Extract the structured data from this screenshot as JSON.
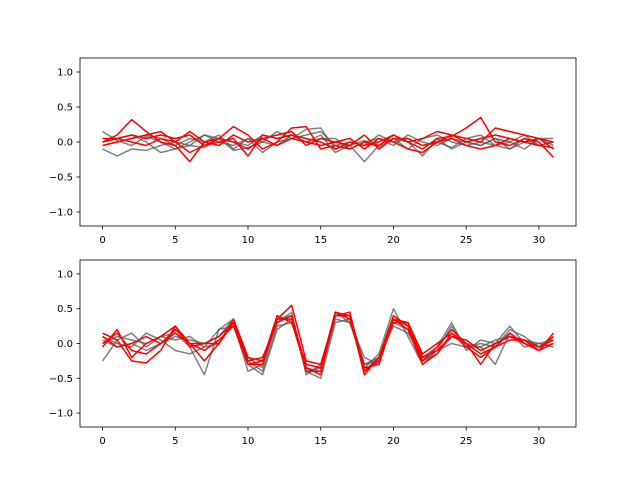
{
  "colors": {
    "gray_series": "#555555",
    "red_series": "#ff0000",
    "axes": "#000000",
    "background": "#ffffff"
  },
  "chart_data": [
    {
      "type": "line",
      "xlim": [
        -1.55,
        32.55
      ],
      "ylim": [
        -1.2,
        1.2
      ],
      "xticks": [
        0,
        5,
        10,
        15,
        20,
        25,
        30
      ],
      "yticks": [
        -1.0,
        -0.5,
        0.0,
        0.5,
        1.0
      ],
      "xtick_labels": [
        "0",
        "5",
        "10",
        "15",
        "20",
        "25",
        "30"
      ],
      "ytick_labels": [
        "−1.0",
        "−0.5",
        "0.0",
        "0.5",
        "1.0"
      ],
      "grid": false,
      "series": [
        {
          "color": "gray",
          "values": [
            0.15,
            0.02,
            -0.05,
            0.08,
            0.0,
            -0.1,
            -0.05,
            0.1,
            0.05,
            -0.12,
            -0.08,
            0.0,
            0.15,
            0.05,
            0.18,
            0.2,
            -0.1,
            -0.05,
            0.02,
            -0.08,
            0.05,
            0.0,
            -0.2,
            0.05,
            -0.1,
            0.0,
            -0.05,
            0.05,
            -0.1,
            0.0,
            0.05,
            -0.05
          ]
        },
        {
          "color": "gray",
          "values": [
            -0.1,
            -0.2,
            -0.1,
            -0.12,
            -0.05,
            0.0,
            -0.05,
            -0.08,
            0.05,
            0.0,
            -0.05,
            0.1,
            0.05,
            0.1,
            0.0,
            0.1,
            -0.15,
            -0.05,
            -0.28,
            -0.05,
            0.05,
            -0.1,
            0.05,
            0.1,
            0.0,
            -0.05,
            0.0,
            -0.05,
            0.0,
            -0.1,
            0.05,
            0.05
          ]
        },
        {
          "color": "gray",
          "values": [
            0.0,
            0.05,
            0.1,
            0.0,
            -0.15,
            -0.1,
            0.0,
            0.1,
            0.0,
            -0.05,
            0.05,
            -0.15,
            0.0,
            0.05,
            0.1,
            0.15,
            -0.05,
            0.0,
            -0.05,
            0.1,
            0.0,
            0.05,
            -0.05,
            0.0,
            -0.08,
            0.05,
            0.1,
            -0.05,
            -0.1,
            0.05,
            -0.05,
            0.0
          ]
        },
        {
          "color": "gray",
          "values": [
            -0.05,
            0.0,
            0.05,
            0.1,
            0.05,
            -0.05,
            0.05,
            0.0,
            0.1,
            -0.1,
            0.05,
            0.0,
            -0.05,
            0.1,
            0.0,
            0.05,
            0.05,
            -0.1,
            0.0,
            0.05,
            -0.05,
            0.1,
            0.0,
            -0.05,
            0.05,
            0.0,
            -0.05,
            0.05,
            0.0,
            0.1,
            -0.05,
            0.0
          ]
        },
        {
          "color": "red",
          "values": [
            0.0,
            0.1,
            0.32,
            0.15,
            0.0,
            -0.05,
            -0.28,
            0.0,
            0.05,
            0.22,
            0.1,
            -0.1,
            0.0,
            0.2,
            0.22,
            -0.1,
            -0.05,
            -0.1,
            0.0,
            -0.05,
            0.1,
            0.0,
            -0.1,
            0.05,
            0.08,
            0.2,
            0.35,
            0.0,
            -0.05,
            0.05,
            0.0,
            -0.22
          ]
        },
        {
          "color": "red",
          "values": [
            0.05,
            0.05,
            0.1,
            0.05,
            0.1,
            0.05,
            0.1,
            -0.05,
            0.0,
            0.05,
            -0.2,
            0.1,
            0.05,
            0.1,
            0.05,
            0.0,
            -0.1,
            0.0,
            -0.05,
            0.0,
            0.1,
            0.0,
            0.05,
            0.15,
            0.1,
            0.05,
            0.0,
            0.2,
            0.15,
            0.1,
            0.05,
            0.0
          ]
        },
        {
          "color": "red",
          "values": [
            -0.05,
            0.0,
            0.05,
            0.1,
            0.15,
            0.0,
            0.15,
            0.0,
            -0.05,
            0.1,
            0.0,
            0.05,
            0.1,
            0.15,
            -0.05,
            0.05,
            0.0,
            -0.05,
            0.1,
            -0.1,
            0.05,
            0.05,
            -0.05,
            0.0,
            0.1,
            0.0,
            0.05,
            0.1,
            0.05,
            0.0,
            -0.05,
            -0.08
          ]
        },
        {
          "color": "red",
          "values": [
            0.0,
            0.05,
            0.0,
            -0.05,
            0.05,
            0.0,
            -0.15,
            -0.05,
            0.05,
            0.0,
            -0.1,
            0.05,
            -0.05,
            0.05,
            0.0,
            -0.05,
            0.0,
            0.05,
            -0.1,
            0.05,
            0.0,
            -0.1,
            -0.15,
            0.0,
            0.05,
            -0.05,
            -0.1,
            -0.05,
            0.05,
            0.0,
            0.05,
            -0.1
          ]
        }
      ]
    },
    {
      "type": "line",
      "xlim": [
        -1.55,
        32.55
      ],
      "ylim": [
        -1.2,
        1.2
      ],
      "xticks": [
        0,
        5,
        10,
        15,
        20,
        25,
        30
      ],
      "yticks": [
        -1.0,
        -0.5,
        0.0,
        0.5,
        1.0
      ],
      "xtick_labels": [
        "0",
        "5",
        "10",
        "15",
        "20",
        "25",
        "30"
      ],
      "ytick_labels": [
        "−1.0",
        "−0.5",
        "0.0",
        "0.5",
        "1.0"
      ],
      "grid": false,
      "series": [
        {
          "color": "gray",
          "values": [
            -0.25,
            0.05,
            0.15,
            -0.05,
            0.1,
            0.15,
            -0.05,
            -0.45,
            0.2,
            0.35,
            -0.3,
            -0.45,
            0.2,
            0.35,
            -0.4,
            -0.5,
            0.3,
            0.35,
            -0.35,
            -0.15,
            0.5,
            0.1,
            -0.3,
            -0.1,
            0.0,
            -0.05,
            -0.05,
            -0.3,
            0.15,
            -0.05,
            0.0,
            0.05
          ]
        },
        {
          "color": "gray",
          "values": [
            0.1,
            0.0,
            -0.05,
            0.15,
            0.05,
            -0.1,
            -0.15,
            -0.05,
            0.0,
            0.3,
            -0.4,
            -0.3,
            0.3,
            0.45,
            -0.45,
            -0.3,
            0.4,
            0.4,
            -0.3,
            -0.2,
            0.25,
            0.15,
            -0.2,
            -0.05,
            0.3,
            -0.1,
            0.05,
            0.0,
            0.25,
            0.0,
            -0.05,
            0.1
          ]
        },
        {
          "color": "gray",
          "values": [
            0.0,
            0.1,
            0.05,
            0.0,
            0.1,
            0.05,
            0.1,
            -0.05,
            0.2,
            0.25,
            -0.25,
            -0.4,
            0.25,
            0.3,
            -0.35,
            -0.4,
            0.35,
            0.3,
            -0.3,
            -0.25,
            0.3,
            0.2,
            -0.25,
            -0.15,
            0.1,
            0.0,
            -0.05,
            0.05,
            0.1,
            0.05,
            0.0,
            -0.05
          ]
        },
        {
          "color": "gray",
          "values": [
            0.05,
            -0.05,
            0.0,
            -0.1,
            0.0,
            0.1,
            0.05,
            0.0,
            0.1,
            0.35,
            -0.2,
            -0.35,
            0.35,
            0.4,
            -0.4,
            -0.35,
            0.45,
            0.3,
            -0.2,
            -0.3,
            0.35,
            0.25,
            -0.25,
            -0.1,
            0.25,
            -0.05,
            0.0,
            -0.05,
            0.2,
            0.1,
            -0.05,
            0.0
          ]
        },
        {
          "color": "red",
          "values": [
            0.15,
            0.05,
            -0.25,
            -0.28,
            -0.1,
            0.25,
            0.0,
            -0.25,
            0.0,
            0.3,
            -0.3,
            -0.25,
            0.4,
            0.3,
            -0.3,
            -0.35,
            0.45,
            0.4,
            -0.45,
            -0.2,
            0.4,
            0.25,
            -0.25,
            -0.05,
            0.2,
            0.0,
            -0.3,
            0.0,
            0.1,
            0.0,
            -0.1,
            0.15
          ]
        },
        {
          "color": "red",
          "values": [
            -0.05,
            0.2,
            -0.2,
            0.0,
            0.1,
            0.25,
            -0.05,
            0.0,
            0.0,
            0.35,
            -0.2,
            -0.25,
            0.35,
            0.55,
            -0.25,
            -0.3,
            0.4,
            0.45,
            -0.4,
            -0.2,
            0.3,
            0.3,
            -0.15,
            0.0,
            0.15,
            0.0,
            -0.15,
            -0.05,
            0.15,
            0.0,
            -0.1,
            0.1
          ]
        },
        {
          "color": "red",
          "values": [
            0.1,
            -0.05,
            0.0,
            0.1,
            0.0,
            0.15,
            0.0,
            0.0,
            0.1,
            0.3,
            -0.25,
            -0.2,
            0.3,
            0.4,
            -0.35,
            -0.45,
            0.45,
            0.35,
            -0.4,
            -0.25,
            0.35,
            0.3,
            -0.2,
            -0.1,
            0.1,
            0.05,
            -0.1,
            0.0,
            0.1,
            0.05,
            -0.05,
            0.05
          ]
        },
        {
          "color": "red",
          "values": [
            0.0,
            0.15,
            -0.1,
            -0.15,
            0.0,
            0.2,
            0.0,
            -0.1,
            0.05,
            0.25,
            -0.3,
            -0.3,
            0.35,
            0.35,
            -0.4,
            -0.4,
            0.4,
            0.4,
            -0.35,
            -0.3,
            0.35,
            0.2,
            -0.3,
            -0.15,
            0.15,
            -0.05,
            -0.2,
            -0.05,
            0.05,
            0.05,
            -0.1,
            0.0
          ]
        }
      ]
    }
  ]
}
